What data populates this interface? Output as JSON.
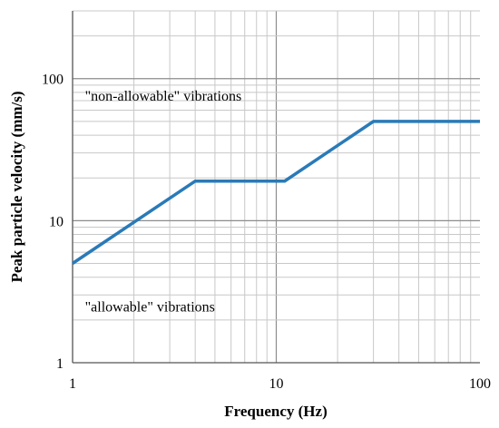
{
  "chart_data": {
    "type": "line",
    "title": "",
    "xlabel": "Frequency (Hz)",
    "ylabel": "Peak particle velocity (mm/s)",
    "x_scale": "log",
    "y_scale": "log",
    "xlim": [
      1,
      100
    ],
    "ylim": [
      1,
      300
    ],
    "x_ticks": [
      {
        "value": 1,
        "label": "1"
      },
      {
        "value": 10,
        "label": "10"
      },
      {
        "value": 100,
        "label": "100"
      }
    ],
    "y_ticks": [
      {
        "value": 1,
        "label": "1"
      },
      {
        "value": 10,
        "label": "10"
      },
      {
        "value": 100,
        "label": "100"
      }
    ],
    "grid": true,
    "series": [
      {
        "color": "#2a7ab8",
        "points": [
          {
            "x": 1,
            "y": 5
          },
          {
            "x": 4,
            "y": 19
          },
          {
            "x": 11,
            "y": 19
          },
          {
            "x": 30,
            "y": 50
          },
          {
            "x": 100,
            "y": 50
          }
        ]
      }
    ],
    "annotations": [
      {
        "text": "\"non-allowable\"  vibrations",
        "x": 1.15,
        "y": 70
      },
      {
        "text": "\"allowable\"  vibrations",
        "x": 1.15,
        "y": 2.3
      }
    ]
  }
}
